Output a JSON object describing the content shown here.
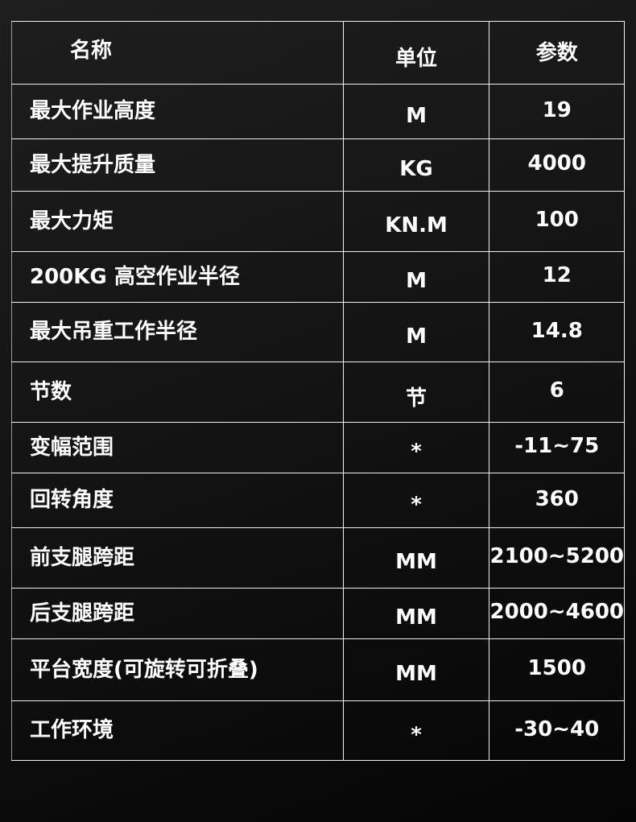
{
  "table": {
    "headers": [
      "名称",
      "单位",
      "参数"
    ],
    "rows": [
      [
        "最大作业高度",
        "M",
        "19"
      ],
      [
        "最大提升质量",
        "KG",
        "4000"
      ],
      [
        "最大力矩",
        "KN.M",
        "100"
      ],
      [
        "200KG 高空作业半径",
        "M",
        "12"
      ],
      [
        "最大吊重工作半径",
        "M",
        "14.8"
      ],
      [
        "节数",
        "节",
        "6"
      ],
      [
        "变幅范围",
        "*",
        "-11~75"
      ],
      [
        "回转角度",
        "*",
        "360"
      ],
      [
        "前支腿跨距",
        "MM",
        "2100~5200"
      ],
      [
        "后支腿跨距",
        "MM",
        "2000~4600"
      ],
      [
        "平台宽度(可旋转可折叠)",
        "MM",
        "1500"
      ],
      [
        "工作环境",
        "*",
        "-30~40"
      ]
    ]
  }
}
